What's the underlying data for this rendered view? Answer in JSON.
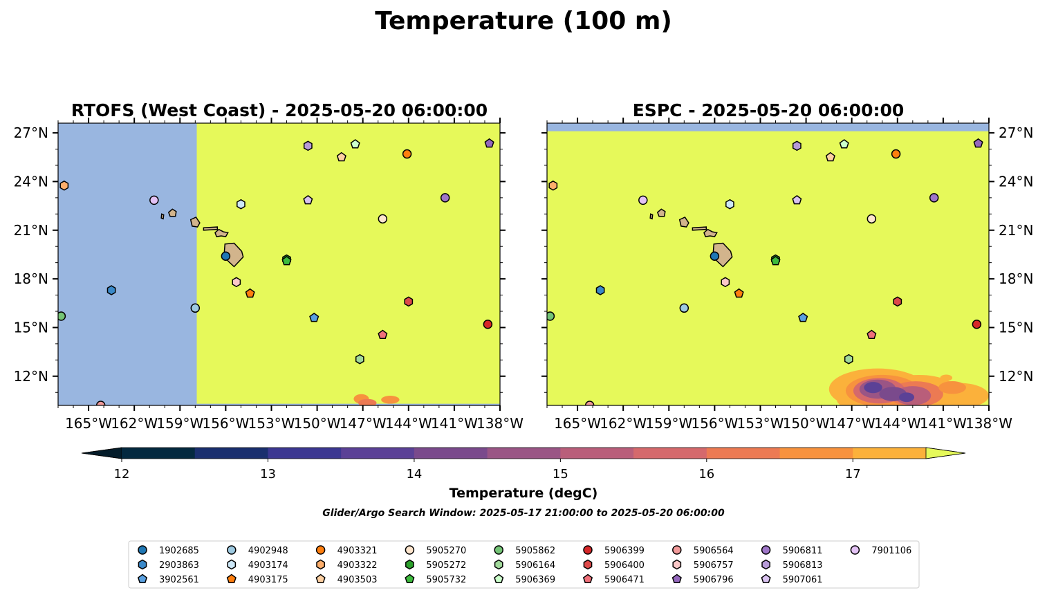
{
  "figure": {
    "title": "Temperature (100 m)",
    "subtitle": "Glider/Argo Search Window: 2025-05-17 21:00:00 to 2025-05-20 06:00:00"
  },
  "colorbar": {
    "label": "Temperature (degC)",
    "ticks": [
      "12",
      "13",
      "14",
      "15",
      "16",
      "17"
    ],
    "min": 12,
    "max": 17.5,
    "step": 0.5,
    "extend": "both",
    "colors": [
      "#04293f",
      "#1a2f6e",
      "#3c3791",
      "#5b4196",
      "#7a4a8c",
      "#9a5585",
      "#b95e7a",
      "#d5696c",
      "#ec7a53",
      "#f7923e",
      "#fbb13b"
    ],
    "under_color": "#041c2a",
    "over_color": "#e5f95a"
  },
  "chart_data": [
    {
      "type": "heatmap",
      "title": "RTOFS (West Coast) - 2025-05-20 06:00:00",
      "xlim": [
        -167,
        -138
      ],
      "ylim": [
        10.2,
        27.6
      ],
      "x_ticks": [
        -165,
        -162,
        -159,
        -156,
        -153,
        -150,
        -147,
        -144,
        -141,
        -138
      ],
      "x_tick_labels": [
        "165°W",
        "162°W",
        "159°W",
        "156°W",
        "153°W",
        "150°W",
        "147°W",
        "144°W",
        "141°W",
        "138°W"
      ],
      "y_ticks": [
        12,
        15,
        18,
        21,
        24,
        27
      ],
      "y_tick_labels": [
        "12°N",
        "15°N",
        "18°N",
        "21°N",
        "24°N",
        "27°N"
      ],
      "y_axis_side": "left",
      "no_data_color": "#99b6e0",
      "field_color": "#e6f95a",
      "no_data_region": "west of 157.9°W (outside model domain)",
      "field_summary": "above 17.5 degC nearly everywhere; small 16-17 degC patches near 146°W, 10.5°N"
    },
    {
      "type": "heatmap",
      "title": "ESPC - 2025-05-20 06:00:00",
      "xlim": [
        -167,
        -138
      ],
      "ylim": [
        10.2,
        27.6
      ],
      "x_ticks": [
        -165,
        -162,
        -159,
        -156,
        -153,
        -150,
        -147,
        -144,
        -141,
        -138
      ],
      "x_tick_labels": [
        "165°W",
        "162°W",
        "159°W",
        "156°W",
        "153°W",
        "150°W",
        "147°W",
        "144°W",
        "141°W",
        "138°W"
      ],
      "y_ticks": [
        12,
        15,
        18,
        21,
        24,
        27
      ],
      "y_tick_labels": [
        "12°N",
        "15°N",
        "18°N",
        "21°N",
        "24°N",
        "27°N"
      ],
      "y_axis_side": "right",
      "no_data_color": "#99b6e0",
      "field_color": "#e6f95a",
      "no_data_region": "north of 27.1°N",
      "field_summary": "above 17.5 degC nearly everywhere; cooler 13-17 degC patch in the southeast corner (141-147°W, 10-12°N)"
    }
  ],
  "islands": [
    {
      "name": "Hawaii",
      "lon": -155.5,
      "lat": 19.6
    },
    {
      "name": "Maui",
      "lon": -156.3,
      "lat": 20.8
    },
    {
      "name": "Molokai",
      "lon": -157.0,
      "lat": 21.1
    },
    {
      "name": "Oahu",
      "lon": -158.0,
      "lat": 21.45
    },
    {
      "name": "Kauai",
      "lon": -159.5,
      "lat": 22.05
    },
    {
      "name": "Niihau",
      "lon": -160.15,
      "lat": 21.85
    }
  ],
  "floats": [
    {
      "id": "1902685",
      "marker": "circle",
      "color": "#1f77b4",
      "lon": -156.0,
      "lat": 19.4
    },
    {
      "id": "2903863",
      "marker": "hexagon",
      "color": "#3a89c9",
      "lon": -163.5,
      "lat": 17.3
    },
    {
      "id": "3902561",
      "marker": "pentagon",
      "color": "#5aa0e0",
      "lon": -150.2,
      "lat": 15.6
    },
    {
      "id": "4902948",
      "marker": "circle",
      "color": "#9ecae1",
      "lon": -158.0,
      "lat": 16.2
    },
    {
      "id": "4903174",
      "marker": "hexagon",
      "color": "#cde8f8",
      "lon": -155.0,
      "lat": 22.6
    },
    {
      "id": "4903175",
      "marker": "pentagon",
      "color": "#ff7f0e",
      "lon": -154.4,
      "lat": 17.1
    },
    {
      "id": "4903321",
      "marker": "circle",
      "color": "#ff7f0e",
      "lon": -144.1,
      "lat": 25.7
    },
    {
      "id": "4903322",
      "marker": "hexagon",
      "color": "#fdae6b",
      "lon": -166.6,
      "lat": 23.75
    },
    {
      "id": "4903503",
      "marker": "pentagon",
      "color": "#fdd0a2",
      "lon": -148.4,
      "lat": 25.5
    },
    {
      "id": "5905270",
      "marker": "circle",
      "color": "#fee6ce",
      "lon": -145.7,
      "lat": 21.7
    },
    {
      "id": "5905272",
      "marker": "hexagon",
      "color": "#2ca02c",
      "lon": -152.0,
      "lat": 19.2
    },
    {
      "id": "5905732",
      "marker": "pentagon",
      "color": "#3dbb3d",
      "lon": -152.0,
      "lat": 19.1
    },
    {
      "id": "5905862",
      "marker": "circle",
      "color": "#74c476",
      "lon": -166.8,
      "lat": 15.7
    },
    {
      "id": "5906164",
      "marker": "hexagon",
      "color": "#a1d99b",
      "lon": -147.2,
      "lat": 13.05
    },
    {
      "id": "5906369",
      "marker": "pentagon",
      "color": "#ccffcc",
      "lon": -147.5,
      "lat": 26.3
    },
    {
      "id": "5906399",
      "marker": "circle",
      "color": "#d62728",
      "lon": -138.8,
      "lat": 15.2
    },
    {
      "id": "5906400",
      "marker": "hexagon",
      "color": "#de4a4a",
      "lon": -144.0,
      "lat": 16.6
    },
    {
      "id": "5906471",
      "marker": "pentagon",
      "color": "#f0707a",
      "lon": -145.7,
      "lat": 14.55
    },
    {
      "id": "5906564",
      "marker": "circle",
      "color": "#f29a9a",
      "lon": -164.2,
      "lat": 10.2
    },
    {
      "id": "5906757",
      "marker": "hexagon",
      "color": "#fbc8c8",
      "lon": -155.3,
      "lat": 17.8
    },
    {
      "id": "5906796",
      "marker": "pentagon",
      "color": "#9467bd",
      "lon": -138.7,
      "lat": 26.35
    },
    {
      "id": "5906811",
      "marker": "circle",
      "color": "#9f76c8",
      "lon": -141.6,
      "lat": 23.0
    },
    {
      "id": "5906813",
      "marker": "hexagon",
      "color": "#b79bd8",
      "lon": -150.6,
      "lat": 26.2
    },
    {
      "id": "5907061",
      "marker": "pentagon",
      "color": "#d9c2f0",
      "lon": -150.6,
      "lat": 22.85
    },
    {
      "id": "7901106",
      "marker": "circle",
      "color": "#e3c2f5",
      "lon": -160.7,
      "lat": 22.85
    }
  ]
}
